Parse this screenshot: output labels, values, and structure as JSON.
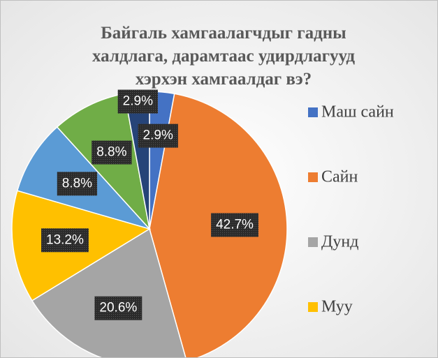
{
  "chart_data": {
    "type": "pie",
    "title": [
      "Байгаль хамгаалагчдыг гадны",
      "халдлага, дарамтаас удирдлагууд",
      "хэрхэн хамгаалдаг вэ?"
    ],
    "categories": [
      "Маш сайн",
      "Сайн",
      "Дунд",
      "Муу",
      null,
      null,
      null
    ],
    "values": [
      2.9,
      42.7,
      20.6,
      13.2,
      8.8,
      8.8,
      2.9
    ],
    "value_labels": [
      "2.9%",
      "42.7%",
      "20.6%",
      "13.2%",
      "8.8%",
      "8.8%",
      "2.9%"
    ],
    "colors": [
      "#4472c4",
      "#ed7d31",
      "#a5a5a5",
      "#ffc000",
      "#5b9bd5",
      "#70ad47",
      "#264478"
    ],
    "legend": "right"
  }
}
